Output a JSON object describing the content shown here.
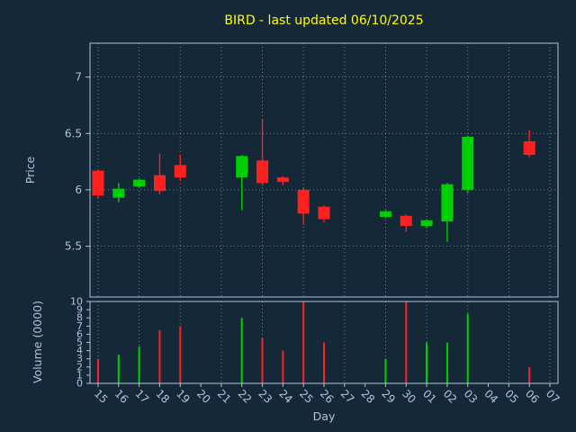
{
  "title": "BIRD - last updated 06/10/2025",
  "colors": {
    "background": "#142838",
    "title": "#ffff00",
    "text": "#b0c4de",
    "axis": "#b0c4de",
    "grid": "#c3d0dd",
    "up": "#00d000",
    "down": "#ff2020"
  },
  "chart_data": [
    {
      "type": "candlestick",
      "panel": "price",
      "title": "BIRD - last updated 06/10/2025",
      "ylabel": "Price",
      "ylim": [
        5.05,
        7.3
      ],
      "yticks": [
        5.5,
        6,
        6.5,
        7
      ],
      "grid": "dotted, vertical every other day + horizontal at yticks",
      "categories": [
        "15",
        "16",
        "17",
        "18",
        "19",
        "20",
        "21",
        "22",
        "23",
        "24",
        "25",
        "26",
        "27",
        "28",
        "29",
        "30",
        "01",
        "02",
        "03",
        "04",
        "05",
        "06",
        "07"
      ],
      "candles": [
        {
          "open": 6.17,
          "high": 6.18,
          "low": 5.93,
          "close": 5.95
        },
        {
          "open": 5.93,
          "high": 6.06,
          "low": 5.89,
          "close": 6.01
        },
        {
          "open": 6.03,
          "high": 6.1,
          "low": 6.02,
          "close": 6.09
        },
        {
          "open": 6.13,
          "high": 6.32,
          "low": 5.96,
          "close": 5.99
        },
        {
          "open": 6.22,
          "high": 6.31,
          "low": 6.08,
          "close": 6.11
        },
        null,
        null,
        {
          "open": 6.11,
          "high": 6.31,
          "low": 5.82,
          "close": 6.3
        },
        {
          "open": 6.26,
          "high": 6.63,
          "low": 6.04,
          "close": 6.06
        },
        {
          "open": 6.11,
          "high": 6.12,
          "low": 6.04,
          "close": 6.07
        },
        {
          "open": 6.0,
          "high": 6.02,
          "low": 5.69,
          "close": 5.79
        },
        {
          "open": 5.85,
          "high": 5.86,
          "low": 5.71,
          "close": 5.74
        },
        null,
        null,
        {
          "open": 5.76,
          "high": 5.82,
          "low": 5.75,
          "close": 5.81
        },
        {
          "open": 5.77,
          "high": 5.78,
          "low": 5.63,
          "close": 5.68
        },
        {
          "open": 5.68,
          "high": 5.74,
          "low": 5.66,
          "close": 5.73
        },
        {
          "open": 5.72,
          "high": 6.06,
          "low": 5.54,
          "close": 6.05
        },
        {
          "open": 6.0,
          "high": 6.48,
          "low": 5.97,
          "close": 6.47
        },
        null,
        null,
        {
          "open": 6.43,
          "high": 6.53,
          "low": 6.29,
          "close": 6.31
        },
        null
      ]
    },
    {
      "type": "bar",
      "panel": "volume",
      "ylabel": "Volume (0000)",
      "xlabel": "Day",
      "ylim": [
        0,
        10
      ],
      "yticks": [
        0,
        1,
        2,
        3,
        4,
        5,
        6,
        7,
        8,
        9,
        10
      ],
      "categories": [
        "15",
        "16",
        "17",
        "18",
        "19",
        "20",
        "21",
        "22",
        "23",
        "24",
        "25",
        "26",
        "27",
        "28",
        "29",
        "30",
        "01",
        "02",
        "03",
        "04",
        "05",
        "06",
        "07"
      ],
      "values": [
        3.0,
        3.5,
        4.5,
        6.5,
        7.0,
        null,
        null,
        8.0,
        5.5,
        4.0,
        10.0,
        5.0,
        null,
        null,
        3.0,
        10.0,
        5.0,
        5.0,
        8.5,
        null,
        null,
        2.0,
        null
      ]
    }
  ]
}
